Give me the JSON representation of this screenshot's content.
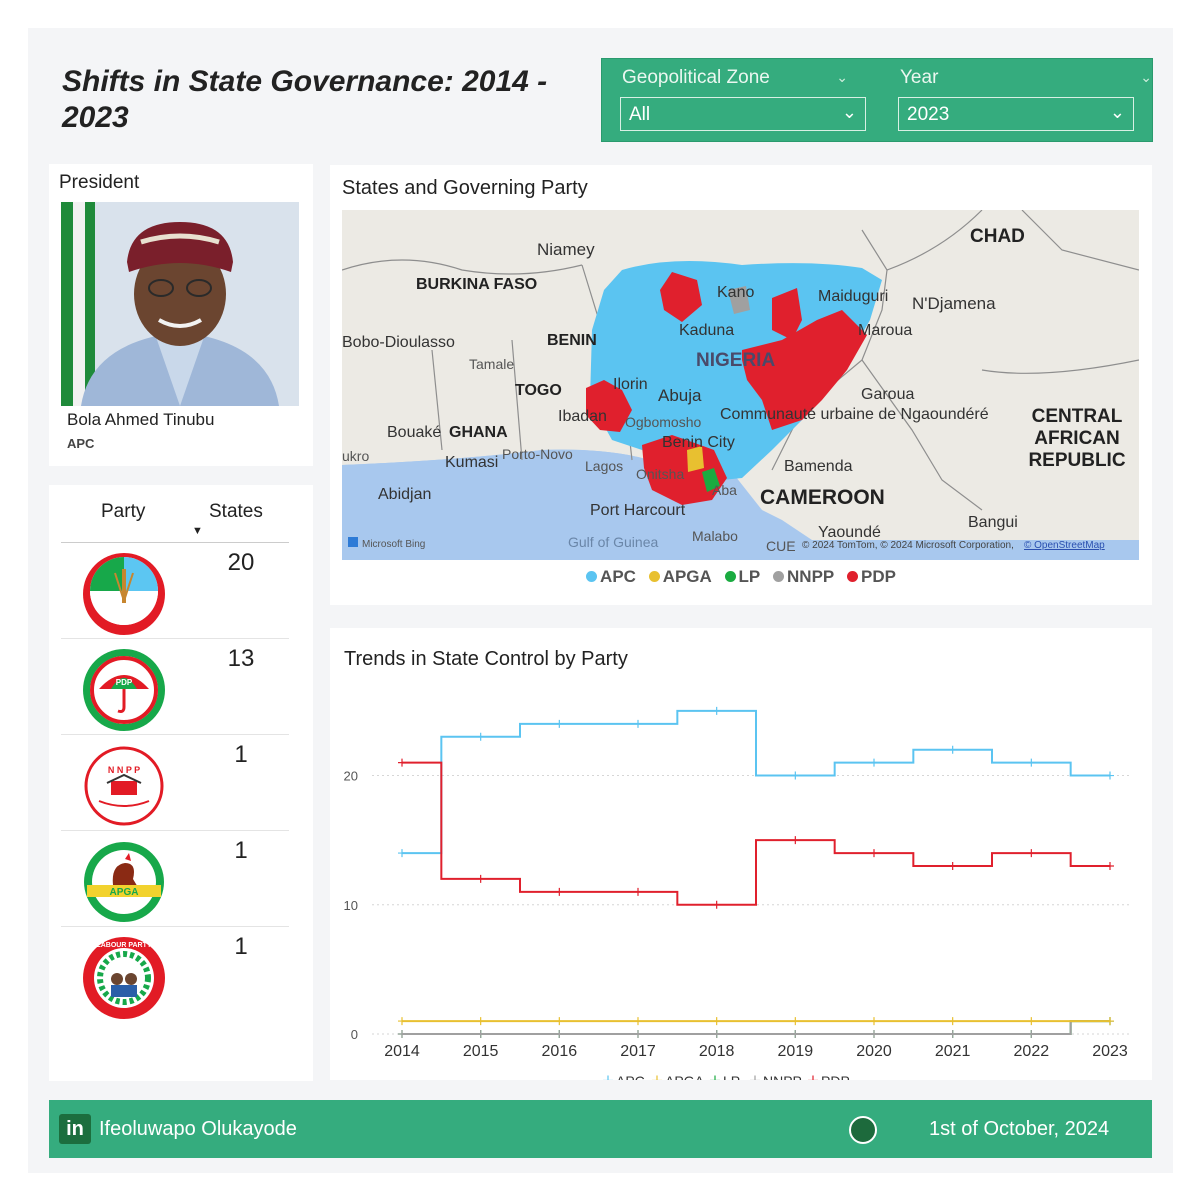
{
  "title": "Shifts in State Governance: 2014 - 2023",
  "filters": {
    "zone": {
      "label": "Geopolitical Zone",
      "value": "All"
    },
    "year": {
      "label": "Year",
      "value": "2023"
    }
  },
  "president": {
    "header": "President",
    "name": "Bola Ahmed Tinubu",
    "party": "APC"
  },
  "party_table": {
    "col_party": "Party",
    "col_states": "States",
    "rows": [
      {
        "party": "APC",
        "logo_text": "APC",
        "states": "20"
      },
      {
        "party": "PDP",
        "logo_text": "PDP",
        "states": "13"
      },
      {
        "party": "NNPP",
        "logo_text": "N N P P",
        "states": "1"
      },
      {
        "party": "APGA",
        "logo_text": "APGA",
        "states": "1"
      },
      {
        "party": "LP",
        "logo_text": "LABOUR PARTY",
        "states": "1"
      }
    ]
  },
  "map": {
    "title": "States and Governing Party",
    "labels": {
      "chad": "CHAD",
      "niamey": "Niamey",
      "burkina": "BURKINA FASO",
      "benin": "BENIN",
      "bobo": "Bobo-Dioulasso",
      "tamale": "Tamale",
      "togo": "TOGO",
      "ghana": "GHANA",
      "bouake": "Bouaké",
      "kumasi": "Kumasi",
      "ukro": "ukro",
      "portonovo": "Porto-Novo",
      "abidjan": "Abidjan",
      "lagos": "Lagos",
      "ibadan": "Ibadan",
      "ilorin": "Ilorin",
      "abuja": "Abuja",
      "ogbomosho": "Ogbomosho",
      "kano": "Kano",
      "kaduna": "Kaduna",
      "nigeria": "NIGERIA",
      "maiduguri": "Maiduguri",
      "ndjamena": "N'Djamena",
      "maroua": "Maroua",
      "garoua": "Garoua",
      "ngaoundere": "Communauté urbaine de Ngaoundéré",
      "car": "CENTRAL AFRICAN REPUBLIC",
      "benincity": "Benin City",
      "onitsha": "Onitsha",
      "aba": "Aba",
      "bamenda": "Bamenda",
      "cameroon": "CAMEROON",
      "portharcourt": "Port Harcourt",
      "malabo": "Malabo",
      "yaounde": "Yaoundé",
      "bangui": "Bangui",
      "gulf": "Gulf of Guinea",
      "cue": "CUE",
      "bing": "Microsoft Bing",
      "copyright": "© 2024 TomTom, © 2024 Microsoft Corporation,",
      "osm": "© OpenStreetMap"
    },
    "legend": [
      {
        "name": "APC",
        "color": "#5bc4f1"
      },
      {
        "name": "APGA",
        "color": "#e8c030"
      },
      {
        "name": "LP",
        "color": "#1aab40"
      },
      {
        "name": "NNPP",
        "color": "#a0a0a0"
      },
      {
        "name": "PDP",
        "color": "#e0202d"
      }
    ]
  },
  "chart_data": {
    "type": "line",
    "title": "Trends in State Control by Party",
    "x": [
      "2014",
      "2015",
      "2016",
      "2017",
      "2018",
      "2019",
      "2020",
      "2021",
      "2022",
      "2023"
    ],
    "yticks": [
      0,
      10,
      20
    ],
    "ylim": [
      0,
      26
    ],
    "step": true,
    "grid": true,
    "legend_position": "bottom",
    "series": [
      {
        "name": "APC",
        "color": "#5bc4f1",
        "values": [
          14,
          23,
          24,
          24,
          25,
          20,
          21,
          22,
          21,
          20
        ]
      },
      {
        "name": "APGA",
        "color": "#e8c030",
        "values": [
          1,
          1,
          1,
          1,
          1,
          1,
          1,
          1,
          1,
          1
        ]
      },
      {
        "name": "LP",
        "color": "#1aab40",
        "values": [
          0,
          0,
          0,
          0,
          0,
          0,
          0,
          0,
          0,
          1
        ]
      },
      {
        "name": "NNPP",
        "color": "#a0a0a0",
        "values": [
          0,
          0,
          0,
          0,
          0,
          0,
          0,
          0,
          0,
          1
        ]
      },
      {
        "name": "PDP",
        "color": "#e0202d",
        "values": [
          21,
          12,
          11,
          11,
          10,
          15,
          14,
          13,
          14,
          13
        ]
      }
    ]
  },
  "footer": {
    "author": "Ifeoluwapo Olukayode",
    "linkedin": "in",
    "date": "1st of October, 2024"
  }
}
